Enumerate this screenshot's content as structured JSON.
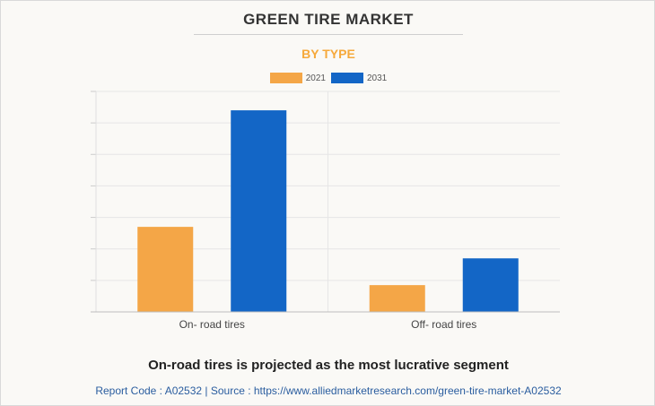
{
  "title": "GREEN TIRE MARKET",
  "subtitle": "BY TYPE",
  "caption": "On-road tires is projected as the most lucrative segment",
  "source": "Report Code : A02532  |  Source : https://www.alliedmarketresearch.com/green-tire-market-A02532",
  "colors": {
    "series_2021": "#f4a647",
    "series_2031": "#1366c6",
    "subtitle": "#f6a93b"
  },
  "chart_data": {
    "type": "bar",
    "title": "GREEN TIRE MARKET",
    "subtitle": "BY TYPE",
    "categories": [
      "On- road tires",
      "Off- road tires"
    ],
    "series": [
      {
        "name": "2021",
        "values": [
          2.7,
          0.85
        ]
      },
      {
        "name": "2031",
        "values": [
          6.4,
          1.7
        ]
      }
    ],
    "ylim": [
      0,
      7
    ],
    "grid": true,
    "legend": "top-center"
  }
}
